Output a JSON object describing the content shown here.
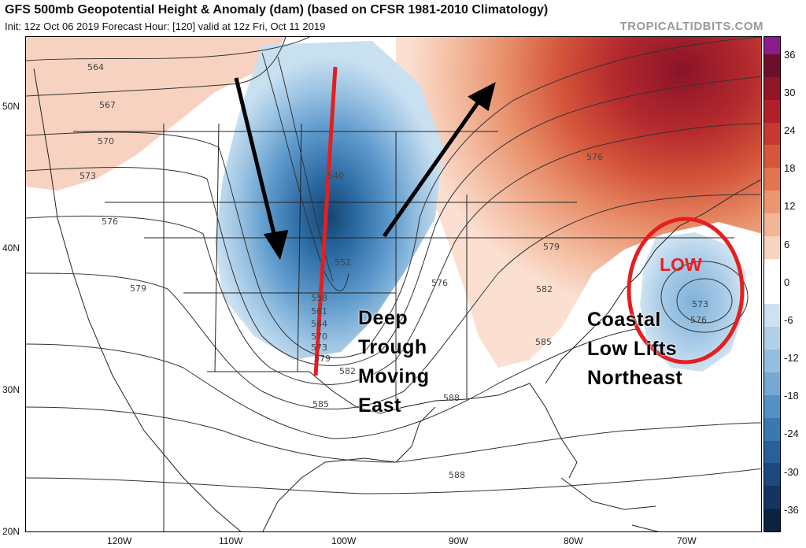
{
  "header": {
    "title": "GFS 500mb Geopotential Height & Anomaly (dam) (based on CFSR 1981-2010 Climatology)",
    "subtitle": "Init: 12z Oct 06 2019   Forecast Hour: [120]   valid at 12z Fri, Oct 11 2019",
    "brand": "TROPICALTIDBITS.COM"
  },
  "axes": {
    "lat_labels": [
      "50N",
      "40N",
      "30N",
      "20N"
    ],
    "lon_labels": [
      "120W",
      "110W",
      "100W",
      "90W",
      "80W",
      "70W"
    ]
  },
  "colorbar": {
    "ticks": [
      "36",
      "30",
      "24",
      "18",
      "12",
      "6",
      "0",
      "-6",
      "-12",
      "-18",
      "-24",
      "-30",
      "-36"
    ],
    "colors": [
      "#6d0f2c",
      "#8f1527",
      "#b11f2a",
      "#c7392f",
      "#d65639",
      "#e07550",
      "#ea966e",
      "#f2b597",
      "#f8d3bf",
      "#ffffff",
      "#ffffff",
      "#cde1f0",
      "#b2d0e8",
      "#95bddf",
      "#76a8d3",
      "#5590c4",
      "#3b77b1",
      "#2a5f98",
      "#1d4880",
      "#15345f",
      "#0c2240"
    ],
    "top_color": "#8b1a8b"
  },
  "contour_labels": [
    "564",
    "567",
    "570",
    "573",
    "576",
    "579",
    "540",
    "552",
    "558",
    "561",
    "564",
    "570",
    "573",
    "579",
    "582",
    "585",
    "588",
    "576",
    "579",
    "582",
    "585",
    "576",
    "573",
    "576",
    "588"
  ],
  "annotations": {
    "trough": [
      "Deep",
      "Trough",
      "Moving",
      "East"
    ],
    "coastal": [
      "Coastal",
      "Low Lifts",
      "Northeast"
    ],
    "low": "LOW"
  },
  "colors": {
    "trough_line": "#e41f1f",
    "low_circle": "#e41f1f",
    "arrows": "#000000"
  }
}
